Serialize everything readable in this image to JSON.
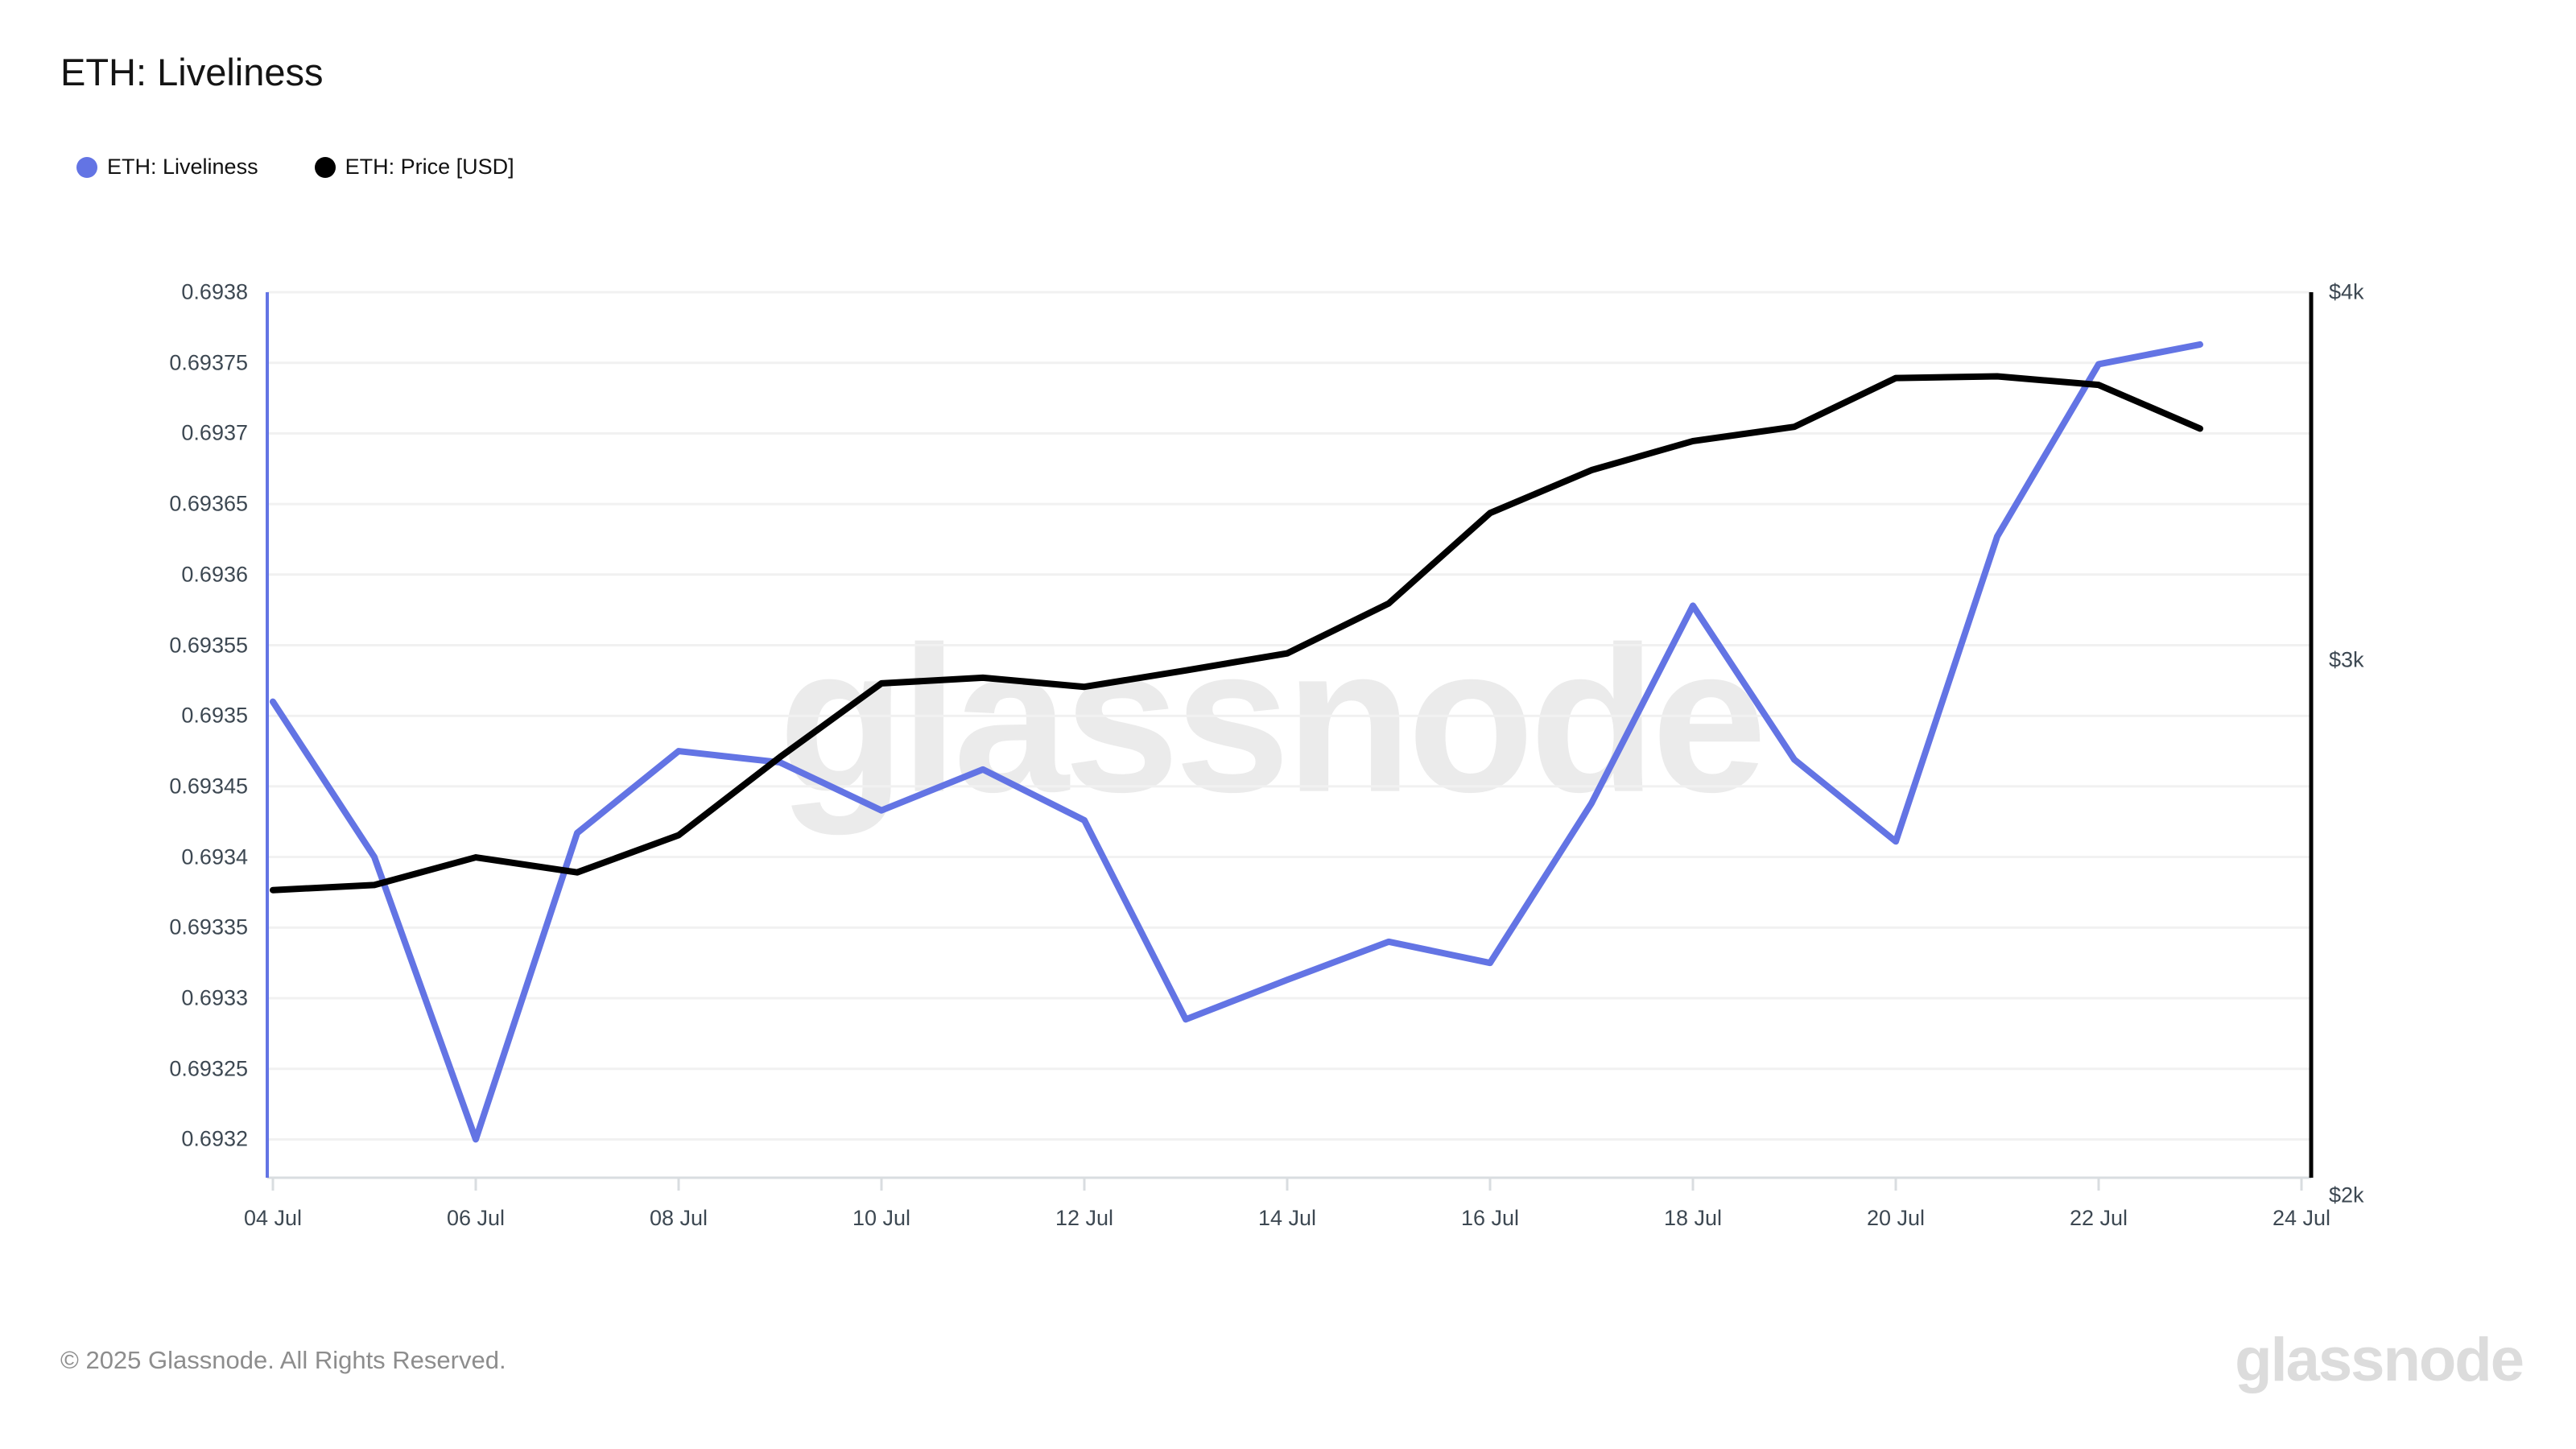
{
  "title": "ETH: Liveliness",
  "legend": [
    {
      "label": "ETH: Liveliness",
      "color": "#6374e4"
    },
    {
      "label": "ETH: Price [USD]",
      "color": "#000000"
    }
  ],
  "watermark": {
    "text": "glassnode"
  },
  "footer": {
    "copyright": "© 2025 Glassnode. All Rights Reserved.",
    "logo_text": "glassnode"
  },
  "colors": {
    "liveliness_line": "#6374e4",
    "price_line": "#000000",
    "gridline": "#f1f1f1",
    "axis_baseline": "#d9dde0",
    "tick_text": "#3d4852",
    "left_axis_line": "#6374e4",
    "right_axis_line": "#000000"
  },
  "chart_data": {
    "type": "line",
    "title": "ETH: Liveliness",
    "grid": true,
    "legend_position": "top-left",
    "x_dates": [
      "04 Jul",
      "05 Jul",
      "06 Jul",
      "07 Jul",
      "08 Jul",
      "09 Jul",
      "10 Jul",
      "11 Jul",
      "12 Jul",
      "13 Jul",
      "14 Jul",
      "15 Jul",
      "16 Jul",
      "17 Jul",
      "18 Jul",
      "19 Jul",
      "20 Jul",
      "21 Jul",
      "22 Jul",
      "23 Jul"
    ],
    "x_tick_labels": [
      "04 Jul",
      "06 Jul",
      "08 Jul",
      "10 Jul",
      "12 Jul",
      "14 Jul",
      "16 Jul",
      "18 Jul",
      "20 Jul",
      "22 Jul",
      "24 Jul"
    ],
    "series": [
      {
        "name": "ETH: Liveliness",
        "axis": "left",
        "color": "#6374e4",
        "values": [
          0.69351,
          0.6934,
          0.6932,
          0.693417,
          0.693475,
          0.693467,
          0.693433,
          0.693462,
          0.693426,
          0.693285,
          0.693313,
          0.69334,
          0.693325,
          0.693438,
          0.693578,
          0.693469,
          0.693411,
          0.693627,
          0.693749,
          0.693763
        ]
      },
      {
        "name": "ETH: Price [USD]",
        "axis": "right",
        "color": "#000000",
        "values": [
          2505,
          2515,
          2570,
          2540,
          2615,
          2780,
          2945,
          2958,
          2937,
          2975,
          3015,
          3135,
          3365,
          3480,
          3560,
          3600,
          3740,
          3745,
          3720,
          3595
        ]
      }
    ],
    "y_left": {
      "scale": "linear",
      "top": 0.6938,
      "bottom": 0.6932,
      "ticks": [
        0.6938,
        0.69375,
        0.6937,
        0.69365,
        0.6936,
        0.69355,
        0.6935,
        0.69345,
        0.6934,
        0.69335,
        0.6933,
        0.69325,
        0.6932
      ],
      "tick_labels": [
        "0.6938",
        "0.69375",
        "0.6937",
        "0.69365",
        "0.6936",
        "0.69355",
        "0.6935",
        "0.69345",
        "0.6934",
        "0.69335",
        "0.6933",
        "0.69325",
        "0.6932"
      ]
    },
    "y_right": {
      "scale": "log",
      "top": 4000,
      "bottom": 2000,
      "ticks": [
        4000,
        3000,
        2000
      ],
      "tick_labels": [
        "$4k",
        "$3k",
        "$2k"
      ]
    }
  }
}
